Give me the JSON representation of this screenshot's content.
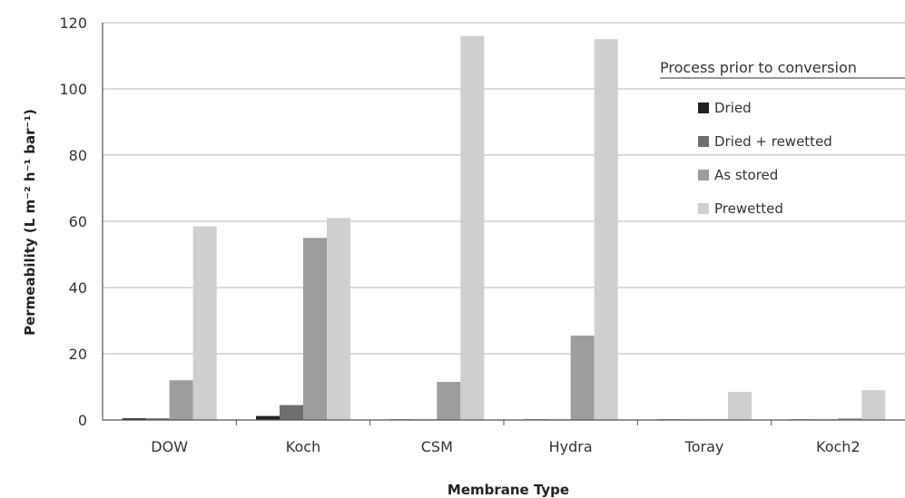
{
  "chart_data": {
    "type": "bar",
    "title": "",
    "xlabel": "Membrane Type",
    "ylabel": "Permeability (L m⁻² h⁻¹ bar⁻¹)",
    "ylim": [
      0,
      120
    ],
    "yticks": [
      "0",
      "20",
      "40",
      "60",
      "80",
      "100",
      "120"
    ],
    "grid": true,
    "legend_title": "Process prior to conversion",
    "legend_position": "top-right",
    "categories": [
      "DOW",
      "Koch",
      "CSM",
      "Hydra",
      "Toray",
      "Koch2"
    ],
    "series": [
      {
        "name": "Dried",
        "color": "#222222",
        "values": [
          0.5,
          1.2,
          0.2,
          0.2,
          0.2,
          0.2
        ]
      },
      {
        "name": "Dried + rewetted",
        "color": "#6e6e6e",
        "values": [
          0.5,
          4.5,
          0.2,
          0.2,
          0.2,
          0.2
        ]
      },
      {
        "name": "As stored",
        "color": "#9d9d9d",
        "values": [
          12,
          55,
          11.5,
          25.5,
          0.2,
          0.5
        ]
      },
      {
        "name": "Prewetted",
        "color": "#cfcfcf",
        "values": [
          58.5,
          61,
          116,
          115,
          8.5,
          9
        ]
      }
    ]
  }
}
